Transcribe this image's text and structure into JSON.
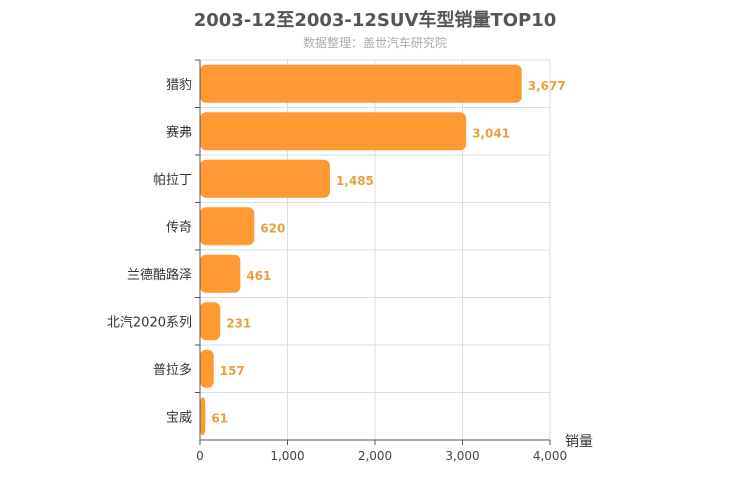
{
  "chart_data": {
    "type": "bar",
    "orientation": "horizontal",
    "title": "2003-12至2003-12SUV车型销量TOP10",
    "subtitle": "数据整理：盖世汽车研究院",
    "xlabel": "销量",
    "categories": [
      "猎豹",
      "赛弗",
      "帕拉丁",
      "传奇",
      "兰德酷路泽",
      "北汽2020系列",
      "普拉多",
      "宝威"
    ],
    "values": [
      3677,
      3041,
      1485,
      620,
      461,
      231,
      157,
      61
    ],
    "value_labels": [
      "3,677",
      "3,041",
      "1,485",
      "620",
      "461",
      "231",
      "157",
      "61"
    ],
    "xlim": [
      0,
      4000
    ],
    "x_ticks": [
      0,
      1000,
      2000,
      3000,
      4000
    ],
    "x_tick_labels": [
      "0",
      "1,000",
      "2,000",
      "3,000",
      "4,000"
    ],
    "grid": true,
    "bar_color": "#ff9933",
    "label_color": "#e8a040"
  }
}
